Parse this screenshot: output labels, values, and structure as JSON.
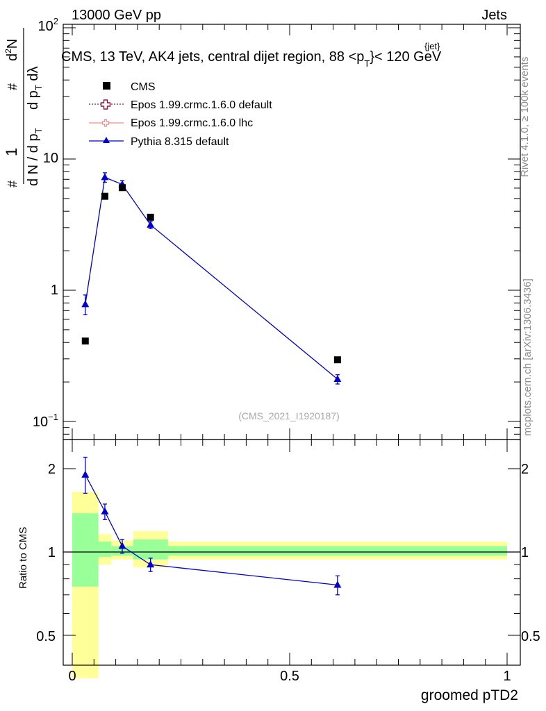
{
  "header": {
    "left": "13000 GeV pp",
    "right": "Jets"
  },
  "side_labels": {
    "rivet": "Rivet 4.1.0, ≥ 100k events",
    "mcplots": "mcplots.cern.ch [arXiv:1306.3436]"
  },
  "chart_data": [
    {
      "type": "scatter",
      "panel": "main",
      "title": "CMS, 13 TeV, AK4 jets, central dijet region, 88 <p",
      "title_sup": "{jet}",
      "title_sub": "T",
      "title_tail": "}< 120 GeV",
      "watermark": "(CMS_2021_I1920187)",
      "yscale": "log",
      "ylim": [
        0.08,
        100
      ],
      "xlim": [
        -0.02,
        1.0
      ],
      "ylabel": {
        "hash1": "#",
        "one": "1",
        "den": "d N / d p",
        "den_sub": "T",
        "hash2": "#",
        "num2": "d",
        "sup2": "2",
        "num2b": "N",
        "den2": "d p",
        "den2_sub": "T",
        "den2_tail": " dλ"
      },
      "yticks": [
        {
          "value": 100,
          "base": "10",
          "exp": "2"
        },
        {
          "value": 10,
          "label": "10"
        },
        {
          "value": 1,
          "label": "1"
        },
        {
          "value": 0.1,
          "base": "10",
          "exp": "−1"
        }
      ],
      "legend": [
        {
          "name": "CMS",
          "marker": "square",
          "color": "#000000"
        },
        {
          "name": "Epos 1.99.crmc.1.6.0 default",
          "marker": "open-cross",
          "color": "#8b1a3a"
        },
        {
          "name": "Epos 1.99.crmc.1.6.0 lhc",
          "marker": "open-cross",
          "color": "#f08a8a"
        },
        {
          "name": "Pythia 8.315 default",
          "marker": "triangle",
          "color": "#0000cc"
        }
      ],
      "series": [
        {
          "name": "CMS",
          "x": [
            0.03,
            0.075,
            0.115,
            0.18,
            0.61
          ],
          "y": [
            0.41,
            5.2,
            6.05,
            3.6,
            0.295
          ]
        },
        {
          "name": "Pythia 8.315 default",
          "x": [
            0.03,
            0.075,
            0.115,
            0.18,
            0.61
          ],
          "y": [
            0.78,
            7.25,
            6.4,
            3.15,
            0.21
          ],
          "err_lo": [
            0.13,
            0.6,
            0.45,
            0.2,
            0.017
          ],
          "err_hi": [
            0.14,
            0.6,
            0.45,
            0.2,
            0.017
          ]
        }
      ]
    },
    {
      "type": "scatter",
      "panel": "ratio",
      "ylabel": "Ratio to CMS",
      "xlabel": "groomed pTD2",
      "yscale": "log",
      "ylim": [
        0.42,
        2.35
      ],
      "xlim": [
        -0.02,
        1.0
      ],
      "xticks": [
        {
          "value": 0,
          "label": "0"
        },
        {
          "value": 0.5,
          "label": "0.5"
        },
        {
          "value": 1,
          "label": "1"
        }
      ],
      "yticks": [
        {
          "value": 2,
          "label": "2"
        },
        {
          "value": 1,
          "label": "1"
        },
        {
          "value": 0.5,
          "label": "0.5"
        }
      ],
      "bands": {
        "bins": [
          0.0,
          0.06,
          0.09,
          0.14,
          0.22,
          1.0
        ],
        "yellow_lo": [
          0.35,
          0.9,
          0.94,
          0.88,
          0.94
        ],
        "yellow_hi": [
          1.65,
          1.16,
          1.1,
          1.19,
          1.09
        ],
        "green_lo": [
          0.75,
          0.96,
          0.97,
          0.94,
          0.97
        ],
        "green_hi": [
          1.38,
          1.09,
          1.05,
          1.11,
          1.05
        ],
        "yellow_color": "#ffff99",
        "green_color": "#99ff99"
      },
      "series": [
        {
          "name": "Pythia 8.315 default",
          "x": [
            0.03,
            0.075,
            0.115,
            0.18,
            0.61
          ],
          "y": [
            1.9,
            1.4,
            1.05,
            0.9,
            0.76
          ],
          "err_lo": [
            0.27,
            0.09,
            0.06,
            0.05,
            0.06
          ],
          "err_hi": [
            0.3,
            0.09,
            0.06,
            0.05,
            0.06
          ]
        }
      ]
    }
  ]
}
